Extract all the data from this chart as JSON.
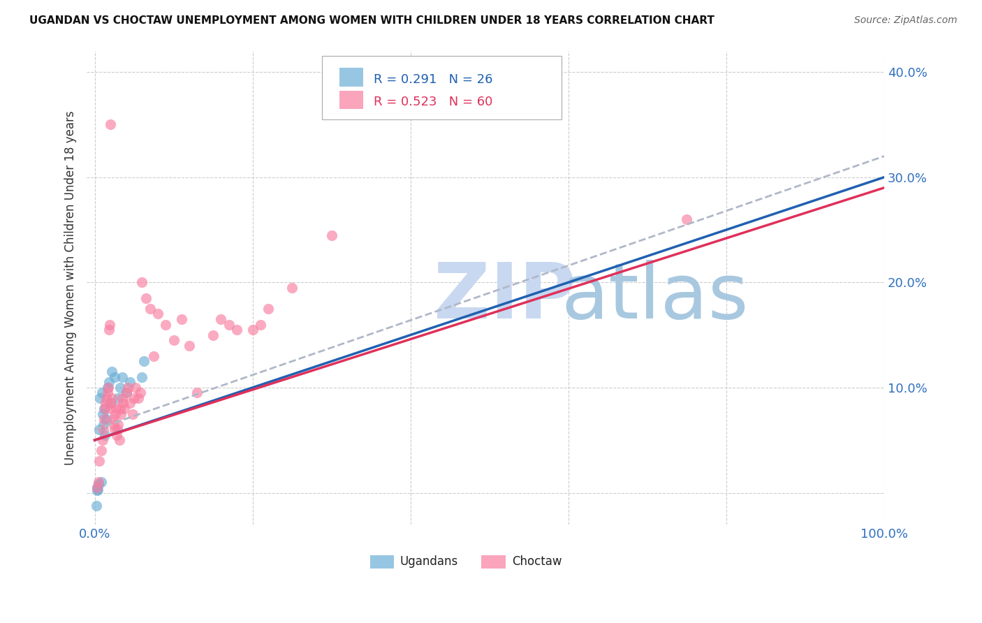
{
  "title": "UGANDAN VS CHOCTAW UNEMPLOYMENT AMONG WOMEN WITH CHILDREN UNDER 18 YEARS CORRELATION CHART",
  "source": "Source: ZipAtlas.com",
  "ylabel": "Unemployment Among Women with Children Under 18 years",
  "background_color": "#ffffff",
  "watermark_zip_color": "#c8d8f0",
  "watermark_atlas_color": "#a8c8e0",
  "legend_text1": "R = 0.291   N = 26",
  "legend_text2": "R = 0.523   N = 60",
  "ugandan_color": "#6baed6",
  "choctaw_color": "#f87fa0",
  "line1_color": "#2060b0",
  "line2_color": "#e0305a",
  "dashed_line_color": "#b0b8c8",
  "grid_color": "#cccccc",
  "ytick_color": "#3070c0",
  "xtick_color": "#3070c0",
  "ugandan_x": [
    0.3,
    0.5,
    0.6,
    0.7,
    0.8,
    0.9,
    1.0,
    1.1,
    1.2,
    1.3,
    1.5,
    1.6,
    1.8,
    2.0,
    2.2,
    2.5,
    3.0,
    3.2,
    3.5,
    4.0,
    4.5,
    6.0,
    6.2,
    0.2,
    0.4,
    0.3
  ],
  "ugandan_y": [
    0.5,
    0.8,
    6.0,
    9.0,
    1.0,
    9.5,
    7.5,
    6.5,
    8.0,
    5.5,
    7.0,
    10.0,
    10.5,
    8.5,
    11.5,
    11.0,
    9.0,
    10.0,
    11.0,
    9.5,
    10.5,
    11.0,
    12.5,
    -1.2,
    0.3,
    0.2
  ],
  "choctaw_x": [
    0.3,
    0.5,
    0.6,
    0.8,
    1.0,
    1.1,
    1.2,
    1.3,
    1.4,
    1.5,
    1.6,
    1.7,
    1.8,
    1.9,
    2.0,
    2.1,
    2.2,
    2.3,
    2.4,
    2.5,
    2.6,
    2.7,
    2.8,
    2.9,
    3.0,
    3.1,
    3.2,
    3.3,
    3.5,
    3.6,
    3.8,
    4.0,
    4.2,
    4.5,
    4.8,
    5.0,
    5.2,
    5.5,
    5.8,
    6.0,
    6.5,
    7.0,
    7.5,
    8.0,
    9.0,
    10.0,
    11.0,
    12.0,
    13.0,
    15.0,
    16.0,
    17.0,
    18.0,
    20.0,
    21.0,
    22.0,
    25.0,
    30.0,
    75.0,
    2.0
  ],
  "choctaw_y": [
    0.5,
    1.0,
    3.0,
    4.0,
    5.0,
    6.0,
    7.0,
    8.0,
    8.5,
    9.0,
    9.5,
    10.0,
    15.5,
    16.0,
    8.0,
    8.5,
    9.0,
    7.0,
    6.5,
    6.0,
    7.5,
    8.0,
    5.5,
    6.0,
    6.5,
    5.0,
    8.0,
    7.5,
    9.0,
    8.5,
    8.0,
    9.5,
    10.0,
    8.5,
    7.5,
    9.0,
    10.0,
    9.0,
    9.5,
    20.0,
    18.5,
    17.5,
    13.0,
    17.0,
    16.0,
    14.5,
    16.5,
    14.0,
    9.5,
    15.0,
    16.5,
    16.0,
    15.5,
    15.5,
    16.0,
    17.5,
    19.5,
    24.5,
    26.0,
    35.0
  ],
  "xlim_min": -1.0,
  "xlim_max": 100.0,
  "ylim_min": -3.0,
  "ylim_max": 42.0,
  "yticks": [
    0,
    10,
    20,
    30,
    40
  ],
  "xticks": [
    0,
    20,
    40,
    60,
    80,
    100
  ],
  "marker_size": 120
}
